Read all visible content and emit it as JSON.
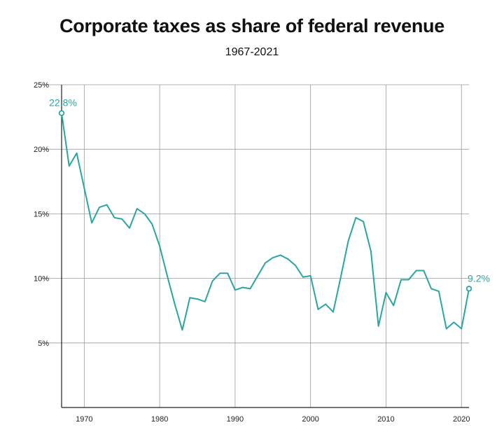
{
  "chart_data": {
    "type": "line",
    "title": "Corporate taxes as share of federal revenue",
    "subtitle": "1967-2021",
    "xlabel": "",
    "ylabel": "",
    "xlim": [
      1967,
      2021
    ],
    "ylim": [
      0,
      25
    ],
    "x_ticks": [
      1970,
      1980,
      1990,
      2000,
      2010,
      2020
    ],
    "y_ticks": [
      5,
      10,
      15,
      20,
      25
    ],
    "y_tick_labels": [
      "5%",
      "10%",
      "15%",
      "20%",
      "25%"
    ],
    "grid": true,
    "line_color": "#2aa5a0",
    "series": [
      {
        "x": [
          1967,
          1968,
          1969,
          1970,
          1971,
          1972,
          1973,
          1974,
          1975,
          1976,
          1977,
          1978,
          1979,
          1980,
          1981,
          1982,
          1983,
          1984,
          1985,
          1986,
          1987,
          1988,
          1989,
          1990,
          1991,
          1992,
          1993,
          1994,
          1995,
          1996,
          1997,
          1998,
          1999,
          2000,
          2001,
          2002,
          2003,
          2004,
          2005,
          2006,
          2007,
          2008,
          2009,
          2010,
          2011,
          2012,
          2013,
          2014,
          2015,
          2016,
          2017,
          2018,
          2019,
          2020,
          2021
        ],
        "values": [
          22.8,
          18.7,
          19.7,
          17.0,
          14.3,
          15.5,
          15.7,
          14.7,
          14.6,
          13.9,
          15.4,
          15.0,
          14.2,
          12.5,
          10.2,
          8.0,
          6.0,
          8.5,
          8.4,
          8.2,
          9.8,
          10.4,
          10.4,
          9.1,
          9.3,
          9.2,
          10.2,
          11.2,
          11.6,
          11.8,
          11.5,
          11.0,
          10.1,
          10.2,
          7.6,
          8.0,
          7.4,
          10.1,
          12.9,
          14.7,
          14.4,
          12.1,
          6.3,
          8.9,
          7.9,
          9.9,
          9.9,
          10.6,
          10.6,
          9.2,
          9.0,
          6.1,
          6.6,
          6.1,
          9.2
        ]
      }
    ],
    "annotations": [
      {
        "x": 1967,
        "y": 22.8,
        "text": "22.8%"
      },
      {
        "x": 2021,
        "y": 9.2,
        "text": "9.2%"
      }
    ]
  }
}
